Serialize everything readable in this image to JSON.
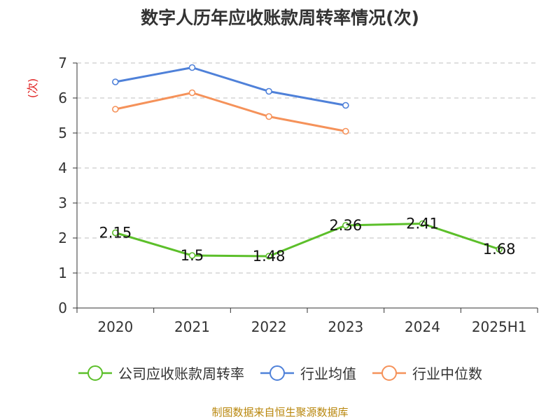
{
  "chart_data": {
    "type": "line",
    "title": "数字人历年应收账款周转率情况(次)",
    "ylabel": "(次)",
    "xlabel": "",
    "categories": [
      "2020",
      "2021",
      "2022",
      "2023",
      "2024",
      "2025H1"
    ],
    "ylim": [
      0,
      7
    ],
    "yticks": [
      "0",
      "1",
      "2",
      "3",
      "4",
      "5",
      "6",
      "7"
    ],
    "grid": true,
    "legend_position": "bottom",
    "series": [
      {
        "name": "公司应收账款周转率",
        "color": "#5cbf2a",
        "values": [
          2.15,
          1.5,
          1.48,
          2.36,
          2.41,
          1.68
        ],
        "labels": [
          "2.15",
          "1.5",
          "1.48",
          "2.36",
          "2.41",
          "1.68"
        ]
      },
      {
        "name": "行业均值",
        "color": "#4f81d9",
        "values": [
          6.46,
          6.87,
          6.19,
          5.79,
          null,
          null
        ]
      },
      {
        "name": "行业中位数",
        "color": "#f5925a",
        "values": [
          5.68,
          6.15,
          5.47,
          5.05,
          null,
          null
        ]
      }
    ]
  },
  "source": "制图数据来自恒生聚源数据库"
}
